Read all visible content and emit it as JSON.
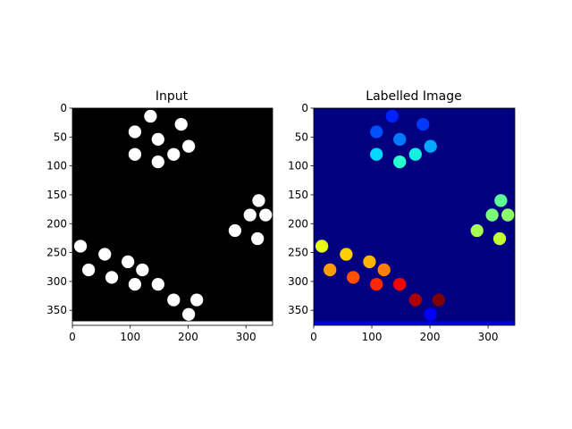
{
  "colors": {
    "input_bg": "#000000",
    "input_blob": "#ffffff",
    "label_bg": "#000080",
    "jet": [
      "#000080",
      "#0000ff",
      "#0080ff",
      "#00ffff",
      "#80ff80",
      "#ffff00",
      "#ff8000",
      "#ff0000",
      "#800000"
    ]
  },
  "chart_data": [
    {
      "type": "image",
      "title": "Input",
      "xlim": [
        0,
        346
      ],
      "ylim": [
        376,
        0
      ],
      "x_ticks": [
        0,
        100,
        200,
        300
      ],
      "y_ticks": [
        0,
        50,
        100,
        150,
        200,
        250,
        300,
        350
      ],
      "blob_radius": 11,
      "blobs": [
        {
          "x": 135,
          "y": 14
        },
        {
          "x": 188,
          "y": 28
        },
        {
          "x": 108,
          "y": 41
        },
        {
          "x": 148,
          "y": 54
        },
        {
          "x": 201,
          "y": 66
        },
        {
          "x": 108,
          "y": 80
        },
        {
          "x": 175,
          "y": 80
        },
        {
          "x": 148,
          "y": 93
        },
        {
          "x": 322,
          "y": 160
        },
        {
          "x": 307,
          "y": 185
        },
        {
          "x": 334,
          "y": 185
        },
        {
          "x": 281,
          "y": 212
        },
        {
          "x": 320,
          "y": 226
        },
        {
          "x": 14,
          "y": 239
        },
        {
          "x": 56,
          "y": 253
        },
        {
          "x": 96,
          "y": 266
        },
        {
          "x": 28,
          "y": 280
        },
        {
          "x": 121,
          "y": 280
        },
        {
          "x": 68,
          "y": 293
        },
        {
          "x": 108,
          "y": 305
        },
        {
          "x": 148,
          "y": 305
        },
        {
          "x": 175,
          "y": 332
        },
        {
          "x": 215,
          "y": 332
        },
        {
          "x": 201,
          "y": 357
        }
      ],
      "bottom_strip": {
        "y_from": 369,
        "y_to": 376,
        "value": "foreground"
      }
    },
    {
      "type": "image",
      "title": "Labelled Image",
      "colormap": "jet",
      "xlim": [
        0,
        346
      ],
      "ylim": [
        376,
        0
      ],
      "x_ticks": [
        0,
        100,
        200,
        300
      ],
      "y_ticks": [
        0,
        50,
        100,
        150,
        200,
        250,
        300,
        350
      ],
      "labels": [
        {
          "x": 135,
          "y": 14,
          "color": "#0022ff"
        },
        {
          "x": 188,
          "y": 28,
          "color": "#0038ff"
        },
        {
          "x": 108,
          "y": 41,
          "color": "#0050ff"
        },
        {
          "x": 148,
          "y": 54,
          "color": "#0078ff"
        },
        {
          "x": 201,
          "y": 66,
          "color": "#00a8ff"
        },
        {
          "x": 108,
          "y": 80,
          "color": "#00d8ff"
        },
        {
          "x": 175,
          "y": 80,
          "color": "#14f0e0"
        },
        {
          "x": 148,
          "y": 93,
          "color": "#26ffd0"
        },
        {
          "x": 322,
          "y": 160,
          "color": "#60ff96"
        },
        {
          "x": 307,
          "y": 185,
          "color": "#7aff7c"
        },
        {
          "x": 334,
          "y": 185,
          "color": "#8cff6a"
        },
        {
          "x": 281,
          "y": 212,
          "color": "#a6ff50"
        },
        {
          "x": 320,
          "y": 226,
          "color": "#c0ff36"
        },
        {
          "x": 14,
          "y": 239,
          "color": "#e8ff0e"
        },
        {
          "x": 56,
          "y": 253,
          "color": "#ffd000"
        },
        {
          "x": 96,
          "y": 266,
          "color": "#ffb400"
        },
        {
          "x": 28,
          "y": 280,
          "color": "#ff9c00"
        },
        {
          "x": 121,
          "y": 280,
          "color": "#ff8000"
        },
        {
          "x": 68,
          "y": 293,
          "color": "#ff5000"
        },
        {
          "x": 108,
          "y": 305,
          "color": "#ff2800"
        },
        {
          "x": 148,
          "y": 305,
          "color": "#f00800"
        },
        {
          "x": 175,
          "y": 332,
          "color": "#b00000"
        },
        {
          "x": 215,
          "y": 332,
          "color": "#800000"
        },
        {
          "x": 201,
          "y": 357,
          "color": "#0000ff"
        }
      ],
      "bottom_strip": {
        "y_from": 369,
        "y_to": 376,
        "color": "#0000d8"
      }
    }
  ]
}
